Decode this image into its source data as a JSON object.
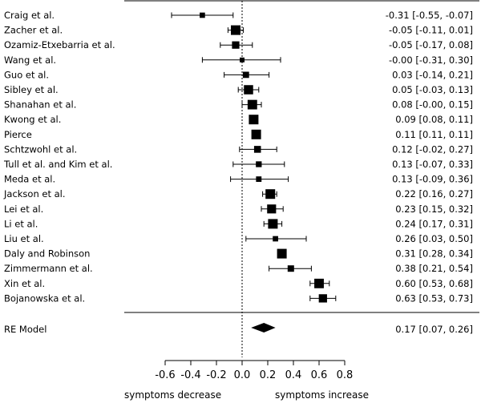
{
  "chart_data": {
    "type": "forest",
    "studies": [
      {
        "label": "Craig et al.",
        "estimate": -0.31,
        "lower": -0.55,
        "upper": -0.07,
        "ci_text": "-0.31 [-0.55, -0.07]"
      },
      {
        "label": "Zacher et al.",
        "estimate": -0.05,
        "lower": -0.11,
        "upper": 0.01,
        "ci_text": "-0.05 [-0.11, 0.01]"
      },
      {
        "label": "Ozamiz-Etxebarria et al.",
        "estimate": -0.05,
        "lower": -0.17,
        "upper": 0.08,
        "ci_text": "-0.05 [-0.17, 0.08]"
      },
      {
        "label": "Wang et al.",
        "estimate": 0.0,
        "lower": -0.31,
        "upper": 0.3,
        "ci_text": "-0.00 [-0.31, 0.30]"
      },
      {
        "label": "Guo et al.",
        "estimate": 0.03,
        "lower": -0.14,
        "upper": 0.21,
        "ci_text": "0.03 [-0.14, 0.21]"
      },
      {
        "label": "Sibley et al.",
        "estimate": 0.05,
        "lower": -0.03,
        "upper": 0.13,
        "ci_text": "0.05 [-0.03, 0.13]"
      },
      {
        "label": "Shanahan et al.",
        "estimate": 0.08,
        "lower": 0.0,
        "upper": 0.15,
        "ci_text": "0.08 [-0.00, 0.15]"
      },
      {
        "label": "Kwong et al.",
        "estimate": 0.09,
        "lower": 0.08,
        "upper": 0.11,
        "ci_text": "0.09 [0.08, 0.11]"
      },
      {
        "label": "Pierce",
        "estimate": 0.11,
        "lower": 0.11,
        "upper": 0.11,
        "ci_text": "0.11 [0.11, 0.11]"
      },
      {
        "label": "Schtzwohl et al.",
        "estimate": 0.12,
        "lower": -0.02,
        "upper": 0.27,
        "ci_text": "0.12 [-0.02, 0.27]"
      },
      {
        "label": "Tull et al. and Kim et al.",
        "estimate": 0.13,
        "lower": -0.07,
        "upper": 0.33,
        "ci_text": "0.13 [-0.07, 0.33]"
      },
      {
        "label": "Meda et al.",
        "estimate": 0.13,
        "lower": -0.09,
        "upper": 0.36,
        "ci_text": "0.13 [-0.09, 0.36]"
      },
      {
        "label": "Jackson et al.",
        "estimate": 0.22,
        "lower": 0.16,
        "upper": 0.27,
        "ci_text": "0.22 [0.16, 0.27]"
      },
      {
        "label": "Lei et al.",
        "estimate": 0.23,
        "lower": 0.15,
        "upper": 0.32,
        "ci_text": "0.23 [0.15, 0.32]"
      },
      {
        "label": "Li et al.",
        "estimate": 0.24,
        "lower": 0.17,
        "upper": 0.31,
        "ci_text": "0.24 [0.17, 0.31]"
      },
      {
        "label": "Liu et al.",
        "estimate": 0.26,
        "lower": 0.03,
        "upper": 0.5,
        "ci_text": "0.26 [0.03, 0.50]"
      },
      {
        "label": "Daly and Robinson",
        "estimate": 0.31,
        "lower": 0.28,
        "upper": 0.34,
        "ci_text": "0.31 [0.28, 0.34]"
      },
      {
        "label": "Zimmermann et al.",
        "estimate": 0.38,
        "lower": 0.21,
        "upper": 0.54,
        "ci_text": "0.38 [0.21, 0.54]"
      },
      {
        "label": "Xin et al.",
        "estimate": 0.6,
        "lower": 0.53,
        "upper": 0.68,
        "ci_text": "0.60 [0.53, 0.68]"
      },
      {
        "label": "Bojanowska et al.",
        "estimate": 0.63,
        "lower": 0.53,
        "upper": 0.73,
        "ci_text": "0.63 [0.53, 0.73]"
      }
    ],
    "summary": {
      "label": "RE Model",
      "estimate": 0.17,
      "lower": 0.07,
      "upper": 0.26,
      "ci_text": "0.17 [0.07, 0.26]"
    },
    "x_ticks": [
      -0.6,
      -0.4,
      -0.2,
      0.0,
      0.2,
      0.4,
      0.6,
      0.8
    ],
    "x_tick_labels": [
      "-0.6",
      "-0.4",
      "-0.2",
      "0.0",
      "0.2",
      "0.4",
      "0.6",
      "0.8"
    ],
    "xlim": [
      -0.6,
      0.8
    ],
    "reference_line": 0,
    "x_annotation_left": "symptoms decrease",
    "x_annotation_right": "symptoms increase"
  }
}
